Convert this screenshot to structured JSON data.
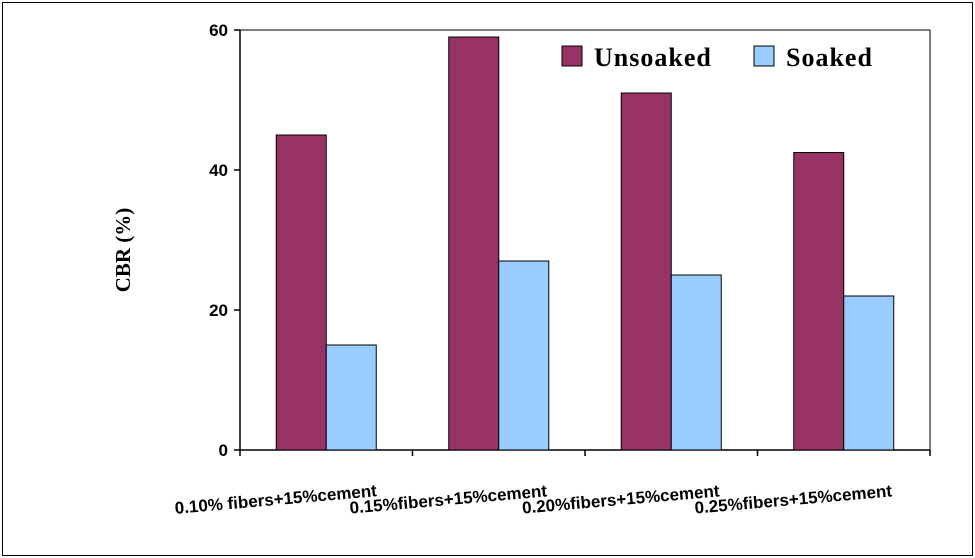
{
  "chart_data": {
    "type": "bar",
    "ylabel": "CBR (%)",
    "xlabel": "",
    "title": "",
    "ylim": [
      0,
      60
    ],
    "yticks": [
      0,
      20,
      40,
      60
    ],
    "categories": [
      "0.10% fibers+15%cement",
      "0.15%fibers+15%cement",
      "0.20%fibers+15%cement",
      "0.25%fibers+15%cement"
    ],
    "series": [
      {
        "name": "Unsoaked",
        "color": "#993366",
        "values": [
          45,
          59,
          51,
          42.5
        ]
      },
      {
        "name": "Soaked",
        "color": "#99CCFF",
        "values": [
          15,
          27,
          25,
          22
        ]
      }
    ],
    "legend_position": "top-right",
    "grid": false
  }
}
